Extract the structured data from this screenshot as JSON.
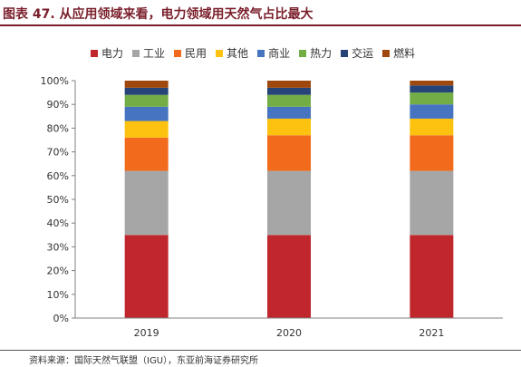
{
  "title": "图表 47. 从应用领域来看，电力领域用天然气占比最大",
  "source": "资料来源：国际天然气联盟（IGU），东亚前海证券研究所",
  "colors": {
    "title": "#7a1f2b"
  },
  "chart_data": {
    "type": "bar",
    "stacked": true,
    "categories": [
      "2019",
      "2020",
      "2021"
    ],
    "ylim": [
      0,
      100
    ],
    "yticks": [
      "0%",
      "10%",
      "20%",
      "30%",
      "40%",
      "50%",
      "60%",
      "70%",
      "80%",
      "90%",
      "100%"
    ],
    "legend_position": "top",
    "grid": false,
    "series": [
      {
        "name": "电力",
        "color": "#c0272d",
        "values": [
          35,
          35,
          35
        ]
      },
      {
        "name": "工业",
        "color": "#a6a6a6",
        "values": [
          27,
          27,
          27
        ]
      },
      {
        "name": "民用",
        "color": "#f26b1d",
        "values": [
          14,
          15,
          15
        ]
      },
      {
        "name": "其他",
        "color": "#fcc20f",
        "values": [
          7,
          7,
          7
        ]
      },
      {
        "name": "商业",
        "color": "#4674c1",
        "values": [
          6,
          5,
          6
        ]
      },
      {
        "name": "热力",
        "color": "#72ad46",
        "values": [
          5,
          5,
          5
        ]
      },
      {
        "name": "交运",
        "color": "#264478",
        "values": [
          3,
          3,
          3
        ]
      },
      {
        "name": "燃料",
        "color": "#9e480e",
        "values": [
          3,
          3,
          2
        ]
      }
    ]
  }
}
